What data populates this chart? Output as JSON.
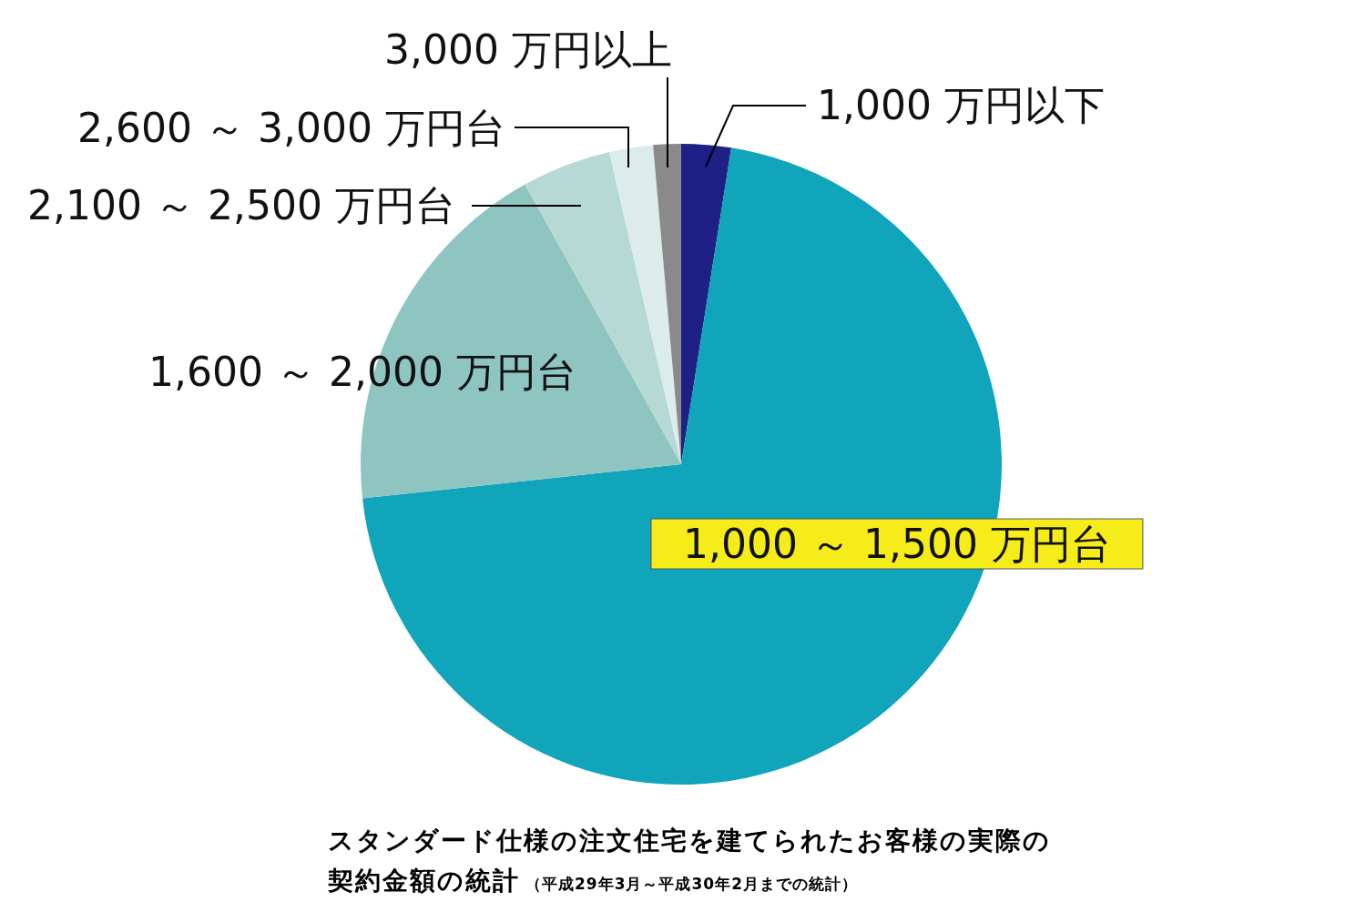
{
  "chart_data": {
    "type": "pie",
    "title": "スタンダード仕様の注文住宅を建てられたお客様の実際の契約金額の統計",
    "subtitle": "（平成29年3月～平成30年2月までの統計）",
    "categories": [
      "1,000 万円以下",
      "1,000 ～ 1,500 万円台",
      "1,600 ～ 2,000 万円台",
      "2,100 ～ 2,500 万円台",
      "2,600 ～ 3,000 万円台",
      "3,000 万円以上"
    ],
    "values": [
      2.5,
      70.8,
      18.6,
      4.5,
      2.2,
      1.4
    ],
    "colors": [
      "#1e2085",
      "#10a5bb",
      "#8fc5c1",
      "#b7d9d6",
      "#dcecea",
      "#8a8a8a"
    ]
  }
}
